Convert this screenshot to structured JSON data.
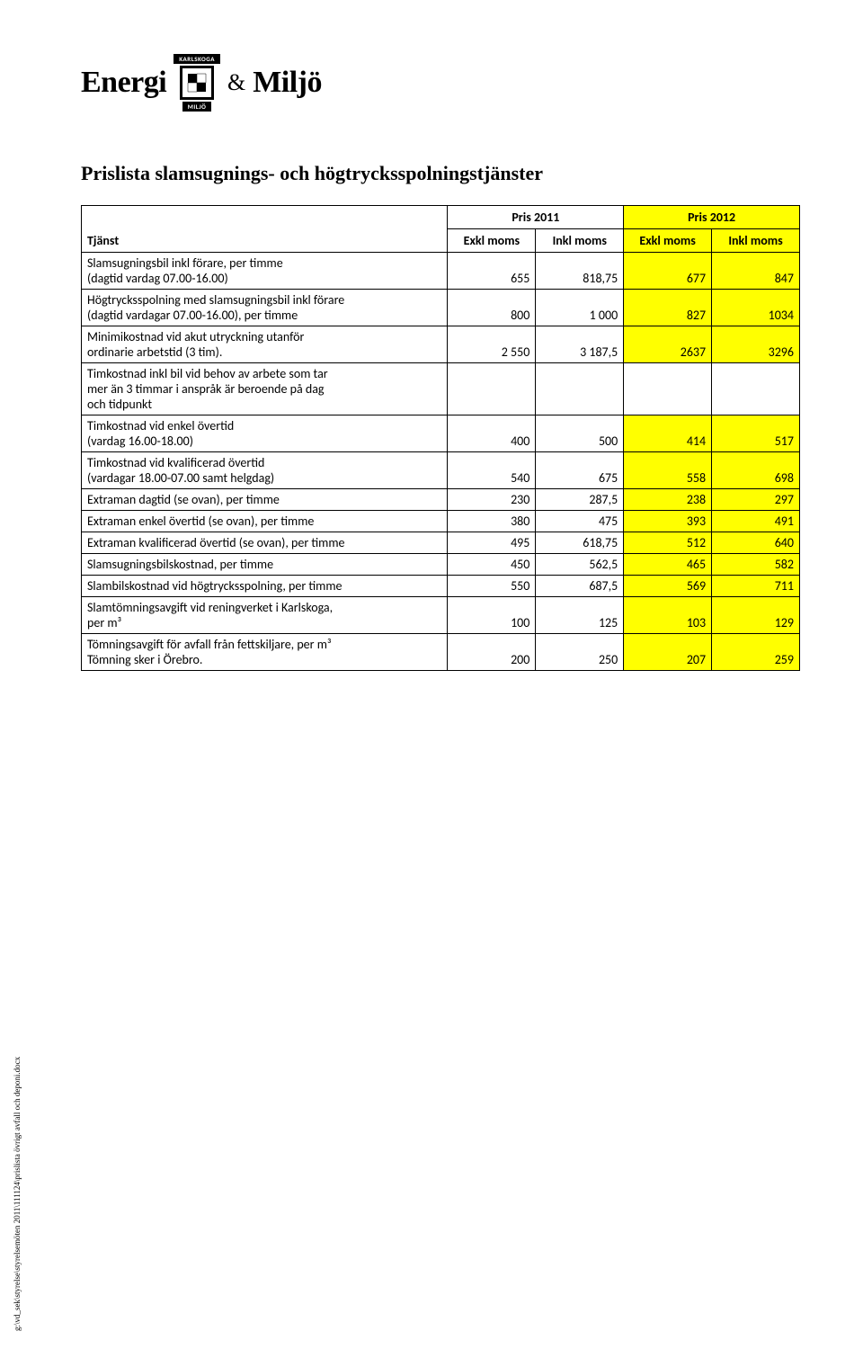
{
  "logo": {
    "left": "Energi",
    "top_label": "KARLSKOGA",
    "bottom_label": "MILJÖ",
    "amp": "&",
    "right": "Miljö"
  },
  "title": "Prislista slamsugnings- och högtrycksspolningstjänster",
  "header": {
    "tjanst": "Tjänst",
    "y2011": "Pris 2011",
    "y2012": "Pris 2012",
    "exkl": "Exkl moms",
    "inkl": "Inkl moms"
  },
  "rows": [
    {
      "label": "Slamsugningsbil inkl förare, per timme\n(dagtid vardag 07.00-16.00)",
      "c1": "655",
      "c2": "818,75",
      "c3": "677",
      "c4": "847"
    },
    {
      "label": "Högtrycksspolning med slamsugningsbil inkl förare\n(dagtid vardagar 07.00-16.00), per timme",
      "c1": "800",
      "c2": "1 000",
      "c3": "827",
      "c4": "1034"
    },
    {
      "label": "Minimikostnad vid akut utryckning utanför\nordinarie arbetstid (3 tim).",
      "c1": "2 550",
      "c2": "3 187,5",
      "c3": "2637",
      "c4": "3296"
    },
    {
      "label": "Timkostnad inkl bil vid behov av arbete som tar\nmer än 3 timmar i anspråk är beroende på dag\noch tidpunkt",
      "c1": "",
      "c2": "",
      "c3": "",
      "c4": "",
      "blank": true
    },
    {
      "label": "Timkostnad vid enkel övertid\n(vardag 16.00-18.00)",
      "c1": "400",
      "c2": "500",
      "c3": "414",
      "c4": "517"
    },
    {
      "label": "Timkostnad vid kvalificerad övertid\n(vardagar 18.00-07.00 samt helgdag)",
      "c1": "540",
      "c2": "675",
      "c3": "558",
      "c4": "698"
    },
    {
      "label": "Extraman dagtid (se ovan), per timme",
      "c1": "230",
      "c2": "287,5",
      "c3": "238",
      "c4": "297"
    },
    {
      "label": "Extraman enkel övertid (se ovan), per timme",
      "c1": "380",
      "c2": "475",
      "c3": "393",
      "c4": "491"
    },
    {
      "label": "Extraman kvalificerad övertid (se ovan), per timme",
      "c1": "495",
      "c2": "618,75",
      "c3": "512",
      "c4": "640"
    },
    {
      "label": "Slamsugningsbilskostnad, per timme",
      "c1": "450",
      "c2": "562,5",
      "c3": "465",
      "c4": "582"
    },
    {
      "label": "Slambilskostnad vid högtrycksspolning, per timme",
      "c1": "550",
      "c2": "687,5",
      "c3": "569",
      "c4": "711"
    },
    {
      "label": "Slamtömningsavgift vid reningverket i Karlskoga,\nper m³",
      "c1": "100",
      "c2": "125",
      "c3": "103",
      "c4": "129"
    },
    {
      "label": "Tömningsavgift för avfall från fettskiljare, per m³\nTömning sker i Örebro.",
      "c1": "200",
      "c2": "250",
      "c3": "207",
      "c4": "259"
    }
  ],
  "table_style": {
    "highlight_color": "#ffff00",
    "border_color": "#000000",
    "background": "#ffffff",
    "font_size_pt": 11,
    "header_font_weight": "bold",
    "col_widths_pct": [
      51,
      12.25,
      12.25,
      12.25,
      12.25
    ]
  },
  "footer_path": "g:\\vd_sek\\styrelse\\styrelsemöten 2011\\111124\\prislista övrigt avfall och deponi.docx"
}
